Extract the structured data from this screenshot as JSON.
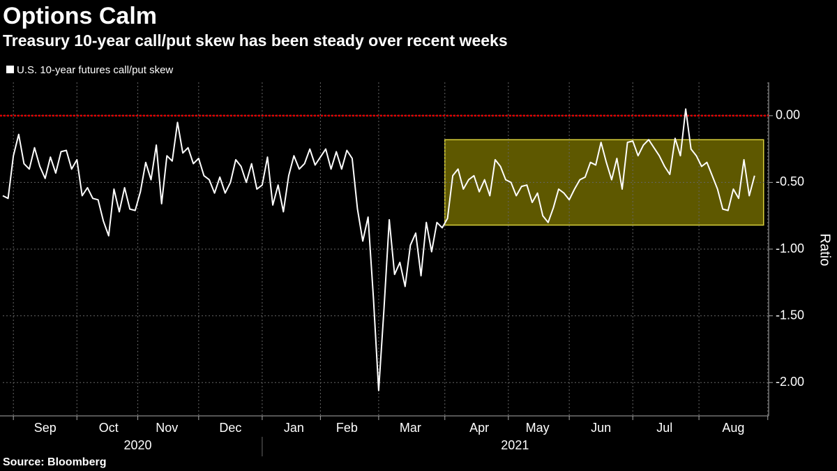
{
  "chart_data": {
    "type": "line",
    "title": "Options Calm",
    "subtitle": "Treasury 10-year call/put skew has been steady over recent weeks",
    "source": "Source: Bloomberg",
    "y_axis_label": "Ratio",
    "x_group_labels": [
      "2020",
      "2021"
    ],
    "categories": [
      null,
      null,
      null,
      null,
      null,
      null,
      null,
      null,
      "Sep",
      null,
      null,
      null,
      null,
      null,
      null,
      null,
      null,
      null,
      null,
      null,
      "Oct",
      null,
      null,
      null,
      null,
      null,
      null,
      null,
      null,
      null,
      null,
      "Nov",
      null,
      null,
      null,
      null,
      null,
      null,
      null,
      null,
      null,
      null,
      null,
      "Dec",
      null,
      null,
      null,
      null,
      null,
      null,
      null,
      null,
      null,
      null,
      null,
      "Jan",
      null,
      null,
      null,
      null,
      null,
      null,
      null,
      null,
      null,
      "Feb",
      null,
      null,
      null,
      null,
      null,
      null,
      null,
      null,
      null,
      null,
      null,
      "Mar",
      null,
      null,
      null,
      null,
      null,
      null,
      null,
      null,
      null,
      null,
      null,
      null,
      "Apr",
      null,
      null,
      null,
      null,
      null,
      null,
      null,
      null,
      null,
      null,
      "May",
      null,
      null,
      null,
      null,
      null,
      null,
      null,
      null,
      null,
      null,
      null,
      "Jun",
      null,
      null,
      null,
      null,
      null,
      null,
      null,
      null,
      null,
      null,
      null,
      "Jul",
      null,
      null,
      null,
      null,
      null,
      null,
      null,
      null,
      null,
      null,
      null,
      null,
      "Aug",
      null,
      null,
      null,
      null
    ],
    "series": [
      {
        "name": "U.S. 10-year futures call/put skew",
        "color": "#ffffff",
        "values": [
          -0.6,
          -0.62,
          -0.3,
          -0.14,
          -0.36,
          -0.4,
          -0.24,
          -0.38,
          -0.47,
          -0.31,
          -0.43,
          -0.27,
          -0.26,
          -0.4,
          -0.33,
          -0.6,
          -0.54,
          -0.62,
          -0.63,
          -0.79,
          -0.9,
          -0.55,
          -0.72,
          -0.54,
          -0.7,
          -0.71,
          -0.57,
          -0.35,
          -0.48,
          -0.22,
          -0.66,
          -0.3,
          -0.34,
          -0.05,
          -0.28,
          -0.24,
          -0.36,
          -0.32,
          -0.45,
          -0.48,
          -0.58,
          -0.46,
          -0.58,
          -0.5,
          -0.33,
          -0.38,
          -0.5,
          -0.36,
          -0.55,
          -0.52,
          -0.31,
          -0.67,
          -0.52,
          -0.72,
          -0.45,
          -0.3,
          -0.4,
          -0.36,
          -0.25,
          -0.37,
          -0.31,
          -0.25,
          -0.4,
          -0.27,
          -0.4,
          -0.26,
          -0.32,
          -0.7,
          -0.94,
          -0.76,
          -1.36,
          -2.06,
          -1.45,
          -0.78,
          -1.19,
          -1.1,
          -1.28,
          -0.97,
          -0.88,
          -1.2,
          -0.8,
          -1.02,
          -0.8,
          -0.84,
          -0.77,
          -0.45,
          -0.4,
          -0.55,
          -0.48,
          -0.45,
          -0.57,
          -0.48,
          -0.6,
          -0.33,
          -0.38,
          -0.48,
          -0.5,
          -0.6,
          -0.53,
          -0.52,
          -0.65,
          -0.58,
          -0.75,
          -0.8,
          -0.69,
          -0.55,
          -0.58,
          -0.63,
          -0.55,
          -0.48,
          -0.46,
          -0.35,
          -0.37,
          -0.2,
          -0.35,
          -0.48,
          -0.32,
          -0.55,
          -0.2,
          -0.19,
          -0.3,
          -0.22,
          -0.18,
          -0.24,
          -0.3,
          -0.38,
          -0.44,
          -0.17,
          -0.3,
          0.05,
          -0.25,
          -0.3,
          -0.38,
          -0.35,
          -0.45,
          -0.55,
          -0.7,
          -0.71,
          -0.55,
          -0.62,
          -0.33,
          -0.6,
          -0.45
        ]
      }
    ],
    "ylim": [
      -2.25,
      0.25
    ],
    "yticks": [
      {
        "value": 0,
        "label": "0.00"
      },
      {
        "value": -0.5,
        "label": "-0.50"
      },
      {
        "value": -1,
        "label": "-1.00"
      },
      {
        "value": -1.5,
        "label": "-1.50"
      },
      {
        "value": -2,
        "label": "-2.00"
      }
    ],
    "grid": true,
    "reference_line": {
      "value": 0,
      "color": "#e00000"
    },
    "highlight": {
      "from": "Apr",
      "y_range": [
        -0.82,
        -0.18
      ],
      "fill": "#5e5800",
      "stroke": "#d8cf3a"
    }
  }
}
